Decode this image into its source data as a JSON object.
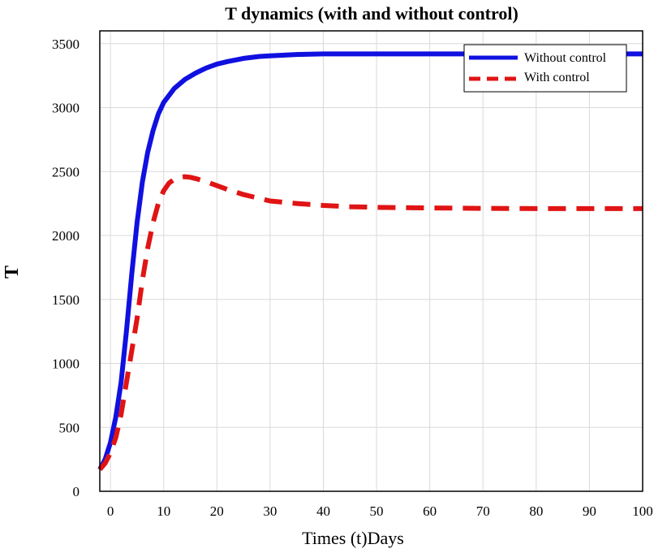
{
  "chart_data": {
    "type": "line",
    "title": "T dynamics (with and without control)",
    "xlabel": "Times (t)Days",
    "ylabel": "T",
    "xlim": [
      -2,
      100
    ],
    "ylim": [
      0,
      3600
    ],
    "xticks": [
      0,
      10,
      20,
      30,
      40,
      50,
      60,
      70,
      80,
      90,
      100
    ],
    "yticks": [
      0,
      500,
      1000,
      1500,
      2000,
      2500,
      3000,
      3500
    ],
    "grid": true,
    "legend_position": "top-right",
    "series": [
      {
        "name": "Without control",
        "color": "#1010e0",
        "style": "solid",
        "x": [
          -2,
          -1,
          0,
          1,
          2,
          3,
          4,
          5,
          6,
          7,
          8,
          9,
          10,
          12,
          14,
          16,
          18,
          20,
          22,
          25,
          28,
          30,
          35,
          40,
          45,
          50,
          60,
          70,
          80,
          90,
          100
        ],
        "y": [
          170,
          250,
          380,
          580,
          850,
          1250,
          1700,
          2100,
          2420,
          2650,
          2820,
          2950,
          3040,
          3150,
          3220,
          3270,
          3310,
          3340,
          3360,
          3385,
          3400,
          3405,
          3415,
          3420,
          3420,
          3420,
          3420,
          3420,
          3420,
          3420,
          3420
        ]
      },
      {
        "name": "With control",
        "color": "#e01414",
        "style": "dashed",
        "x": [
          -2,
          -1,
          0,
          1,
          2,
          3,
          4,
          5,
          6,
          7,
          8,
          9,
          10,
          11,
          12,
          13,
          14,
          15,
          16,
          18,
          20,
          22,
          25,
          28,
          30,
          35,
          40,
          45,
          50,
          60,
          70,
          80,
          90,
          100
        ],
        "y": [
          170,
          220,
          300,
          420,
          600,
          850,
          1100,
          1350,
          1650,
          1900,
          2100,
          2250,
          2350,
          2410,
          2440,
          2455,
          2460,
          2455,
          2445,
          2420,
          2390,
          2360,
          2320,
          2290,
          2270,
          2250,
          2235,
          2225,
          2220,
          2215,
          2212,
          2210,
          2210,
          2210
        ]
      }
    ]
  }
}
